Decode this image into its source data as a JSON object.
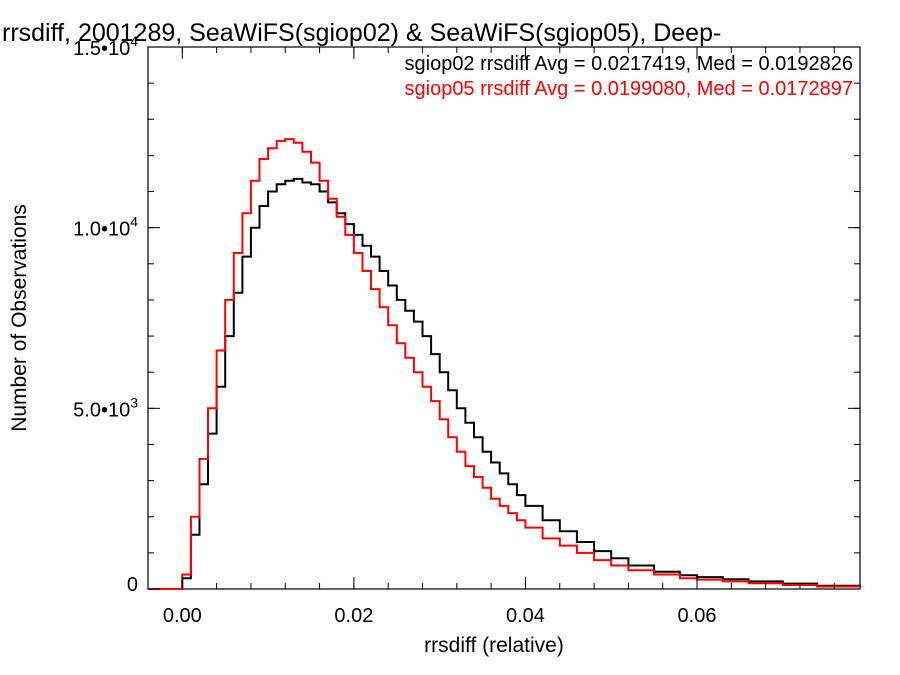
{
  "chart_data": {
    "type": "line",
    "title": "rrsdiff, 2001289, SeaWiFS(sgiop02) & SeaWiFS(sgiop05), Deep-",
    "xlabel": "rrsdiff (relative)",
    "ylabel": "Number of Observations",
    "xlim": [
      -0.004,
      0.079
    ],
    "ylim": [
      0,
      15000
    ],
    "xticks": [
      {
        "value": 0.0,
        "label": "0.00"
      },
      {
        "value": 0.02,
        "label": "0.02"
      },
      {
        "value": 0.04,
        "label": "0.04"
      },
      {
        "value": 0.06,
        "label": "0.06"
      }
    ],
    "yticks": [
      {
        "value": 0,
        "mant": "0",
        "exp": ""
      },
      {
        "value": 5000,
        "mant": "5.0•10",
        "exp": "3"
      },
      {
        "value": 10000,
        "mant": "1.0•10",
        "exp": "4"
      },
      {
        "value": 15000,
        "mant": "1.5•10",
        "exp": "4"
      }
    ],
    "grid": false,
    "step": true,
    "legend_position": "top-right",
    "series": [
      {
        "name": "sgiop02 rrsdiff Avg = 0.0217419, Med = 0.0192826",
        "color": "#000000",
        "x": [
          -0.004,
          -0.0005,
          0.0,
          0.001,
          0.002,
          0.003,
          0.004,
          0.005,
          0.006,
          0.007,
          0.008,
          0.009,
          0.01,
          0.011,
          0.012,
          0.013,
          0.014,
          0.015,
          0.016,
          0.017,
          0.018,
          0.019,
          0.02,
          0.021,
          0.022,
          0.023,
          0.024,
          0.025,
          0.026,
          0.027,
          0.028,
          0.029,
          0.03,
          0.031,
          0.032,
          0.033,
          0.034,
          0.035,
          0.036,
          0.037,
          0.038,
          0.039,
          0.04,
          0.042,
          0.044,
          0.046,
          0.048,
          0.05,
          0.052,
          0.055,
          0.058,
          0.06,
          0.063,
          0.066,
          0.07,
          0.074,
          0.079
        ],
        "y": [
          0,
          0,
          300,
          1500,
          2900,
          4300,
          5600,
          7000,
          8200,
          9200,
          10000,
          10600,
          11000,
          11200,
          11300,
          11350,
          11250,
          11200,
          11000,
          10700,
          10400,
          10100,
          9800,
          9500,
          9200,
          8800,
          8400,
          8000,
          7700,
          7400,
          7000,
          6500,
          6000,
          5500,
          5000,
          4600,
          4200,
          3800,
          3500,
          3200,
          2900,
          2600,
          2300,
          1900,
          1600,
          1300,
          1050,
          850,
          650,
          480,
          380,
          330,
          270,
          210,
          150,
          90,
          50
        ]
      },
      {
        "name": "sgiop05 rrsdiff Avg = 0.0199080, Med = 0.0172897",
        "color": "#ff0000",
        "x": [
          -0.004,
          -0.0005,
          0.0,
          0.001,
          0.002,
          0.003,
          0.004,
          0.005,
          0.006,
          0.007,
          0.008,
          0.009,
          0.01,
          0.011,
          0.012,
          0.013,
          0.014,
          0.015,
          0.016,
          0.017,
          0.018,
          0.019,
          0.02,
          0.021,
          0.022,
          0.023,
          0.024,
          0.025,
          0.026,
          0.027,
          0.028,
          0.029,
          0.03,
          0.031,
          0.032,
          0.033,
          0.034,
          0.035,
          0.036,
          0.037,
          0.038,
          0.039,
          0.04,
          0.042,
          0.044,
          0.046,
          0.048,
          0.05,
          0.052,
          0.055,
          0.058,
          0.06,
          0.063,
          0.066,
          0.07,
          0.074,
          0.079
        ],
        "y": [
          0,
          0,
          400,
          2000,
          3600,
          5000,
          6600,
          8000,
          9300,
          10400,
          11300,
          11900,
          12200,
          12400,
          12450,
          12350,
          12100,
          11800,
          11300,
          10800,
          10300,
          9800,
          9300,
          8800,
          8300,
          7800,
          7300,
          6800,
          6400,
          6000,
          5600,
          5200,
          4700,
          4200,
          3800,
          3400,
          3100,
          2800,
          2500,
          2300,
          2100,
          1900,
          1700,
          1400,
          1200,
          1000,
          800,
          650,
          520,
          400,
          300,
          260,
          210,
          160,
          110,
          70,
          30
        ]
      }
    ]
  }
}
